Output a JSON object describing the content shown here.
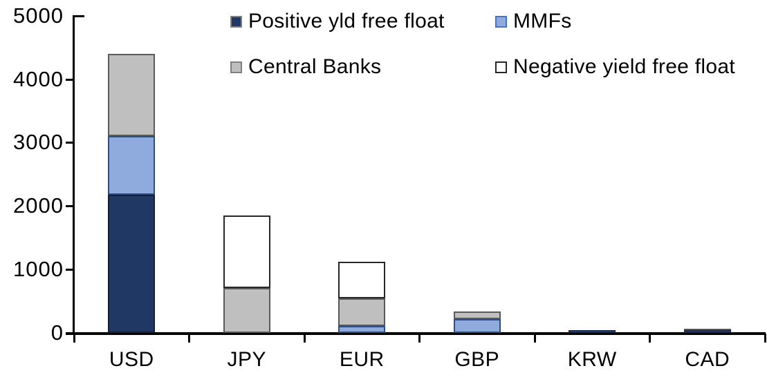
{
  "chart_data": {
    "type": "bar",
    "stacked": true,
    "title": "",
    "xlabel": "",
    "ylabel": "",
    "categories": [
      "USD",
      "JPY",
      "EUR",
      "GBP",
      "KRW",
      "CAD"
    ],
    "series": [
      {
        "name": "Positive yld free float",
        "color": "#1F3864",
        "border_color": "#121f38",
        "swatch_border": "#808080",
        "values": [
          2180,
          0,
          0,
          0,
          45,
          45
        ]
      },
      {
        "name": "MMFs",
        "color": "#8FAADC",
        "border_color": "#2d4d83",
        "swatch_border": "#4472C4",
        "values": [
          925,
          0,
          105,
          215,
          0,
          0
        ]
      },
      {
        "name": "Central Banks",
        "color": "#BFBFBF",
        "border_color": "#595959",
        "swatch_border": "#7f7f7f",
        "values": [
          1290,
          705,
          440,
          120,
          0,
          25
        ]
      },
      {
        "name": "Negative yield free float",
        "color": "#FFFFFF",
        "border_color": "#262626",
        "swatch_border": "#262626",
        "values": [
          0,
          1150,
          575,
          0,
          0,
          0
        ]
      }
    ],
    "totals": [
      4395,
      1855,
      1120,
      335,
      45,
      70
    ],
    "ylim": [
      0,
      5000
    ],
    "yticks": [
      0,
      1000,
      2000,
      3000,
      4000,
      5000
    ],
    "ytick_labels": [
      "0",
      "1000",
      "2000",
      "3000",
      "4000",
      "5000"
    ],
    "grid": false,
    "legend_position": "top",
    "axis_color": "#000000",
    "background_color": "#ffffff"
  }
}
